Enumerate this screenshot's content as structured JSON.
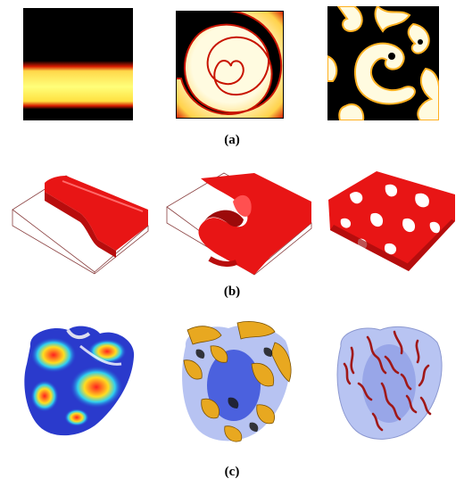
{
  "figure": {
    "rows": [
      {
        "id": "a",
        "caption": "(a)",
        "description_icons": [
          "planar-wave-2d",
          "spiral-wave-2d",
          "spiral-breakup-2d"
        ]
      },
      {
        "id": "b",
        "caption": "(b)",
        "description_icons": [
          "planar-wave-3d-slab",
          "scroll-wave-3d-slab",
          "scroll-breakup-3d-slab"
        ]
      },
      {
        "id": "c",
        "caption": "(c)",
        "description_icons": [
          "heart-surface-activation",
          "heart-wavefront-isosurface",
          "heart-filaments"
        ]
      }
    ],
    "colors": {
      "black": "#000000",
      "yellow": "#ffff66",
      "cream": "#fffbe0",
      "red": "#ee1111",
      "blue": "#2233cc",
      "gold": "#e8a820",
      "translucent_blue": "#aab8f0",
      "filament": "#a01818"
    }
  }
}
